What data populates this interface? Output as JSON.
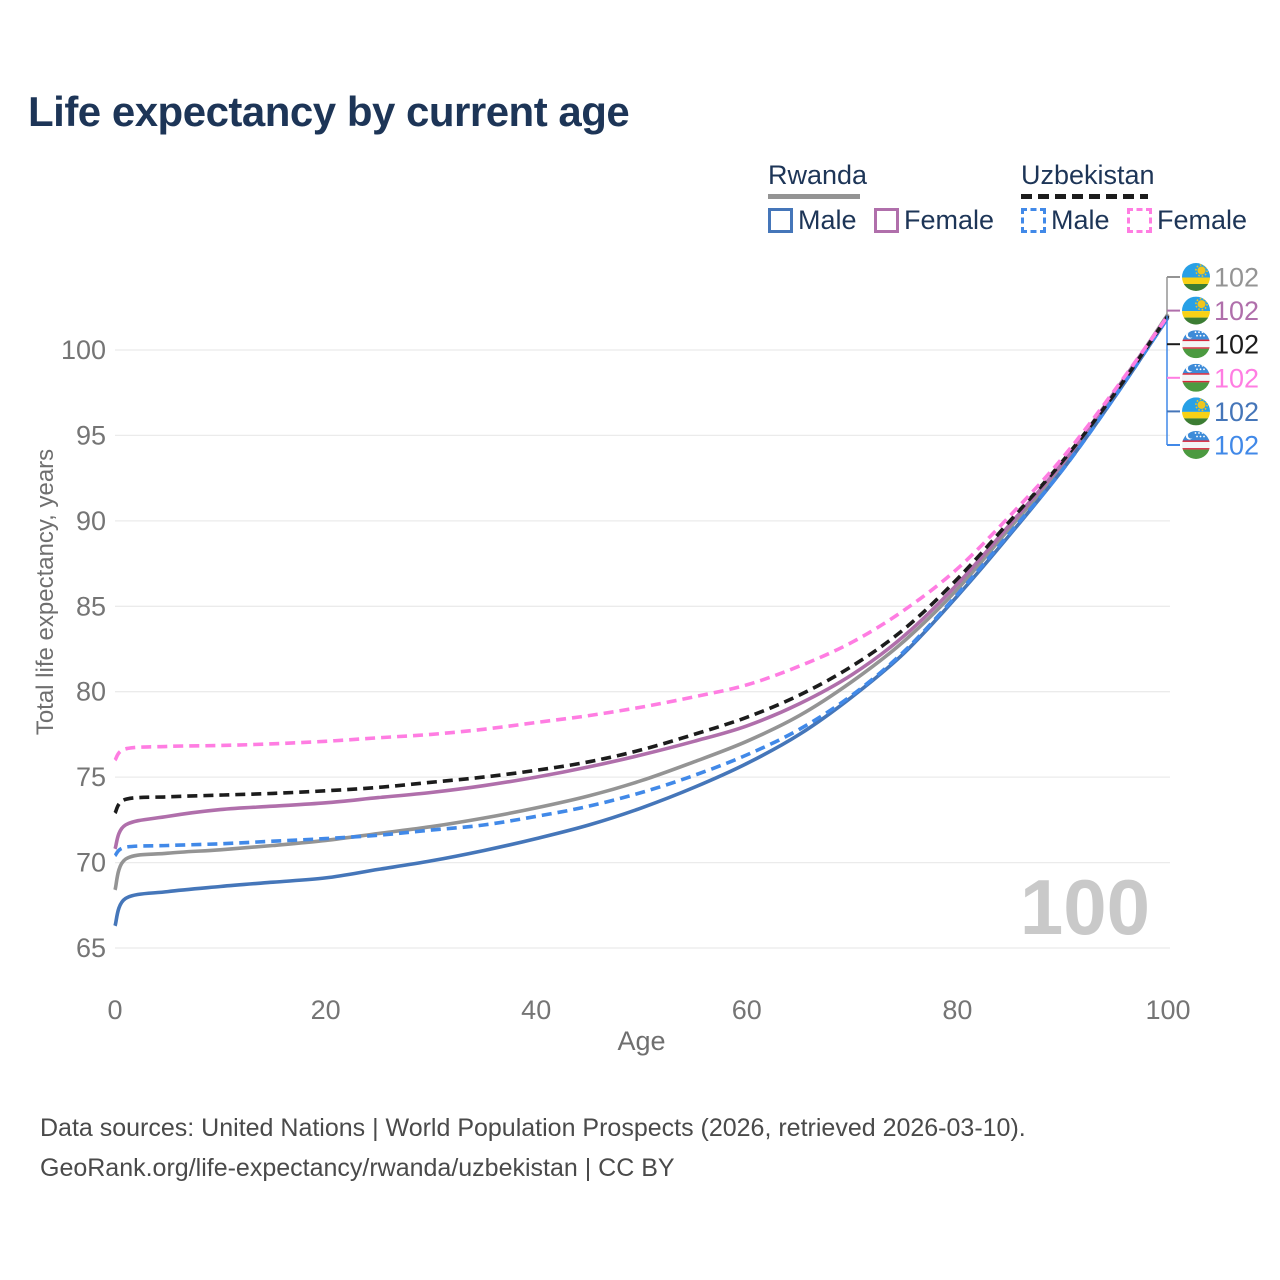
{
  "title": "Life expectancy by current age",
  "watermark": "100",
  "legend": {
    "groups": [
      {
        "country": "Rwanda",
        "line_style": "solid",
        "line_color": "#949494",
        "items": [
          {
            "label": "Male",
            "color": "#4576b9",
            "dashed": false
          },
          {
            "label": "Female",
            "color": "#b06fab",
            "dashed": false
          }
        ]
      },
      {
        "country": "Uzbekistan",
        "line_style": "dashed",
        "line_color": "#1c1c1c",
        "items": [
          {
            "label": "Male",
            "color": "#4189e8",
            "dashed": true
          },
          {
            "label": "Female",
            "color": "#ff7de2",
            "dashed": true
          }
        ]
      }
    ]
  },
  "chart_data": {
    "type": "line",
    "title": "Life expectancy by current age",
    "xlabel": "Age",
    "ylabel": "Total life expectancy, years",
    "xlim": [
      0,
      100
    ],
    "ylim": [
      65,
      103.5
    ],
    "x_ticks": [
      0,
      20,
      40,
      60,
      80,
      100
    ],
    "y_ticks": [
      65,
      70,
      75,
      80,
      85,
      90,
      95,
      100
    ],
    "grid": "horizontal-only",
    "legend_position": "top-right",
    "x": [
      0,
      1,
      5,
      10,
      15,
      20,
      25,
      30,
      35,
      40,
      45,
      50,
      55,
      60,
      65,
      70,
      75,
      80,
      85,
      90,
      95,
      100
    ],
    "series": [
      {
        "name": "Rwanda",
        "country": "Rwanda",
        "sex": "Both",
        "color": "#949494",
        "dashed": false,
        "values": [
          68.4,
          70.2,
          70.55,
          70.75,
          71.0,
          71.3,
          71.7,
          72.1,
          72.6,
          73.2,
          73.9,
          74.8,
          75.9,
          77.1,
          78.6,
          80.6,
          83.0,
          86.0,
          89.6,
          93.2,
          97.5,
          102.1
        ]
      },
      {
        "name": "Rwanda Female",
        "country": "Rwanda",
        "sex": "Female",
        "color": "#b06fab",
        "dashed": false,
        "values": [
          70.8,
          72.2,
          72.7,
          73.1,
          73.3,
          73.5,
          73.8,
          74.1,
          74.5,
          75.0,
          75.6,
          76.3,
          77.1,
          78.0,
          79.3,
          81.0,
          83.3,
          86.3,
          89.8,
          93.4,
          97.6,
          102.0
        ]
      },
      {
        "name": "Rwanda Male",
        "country": "Rwanda",
        "sex": "Male",
        "color": "#4576b9",
        "dashed": false,
        "values": [
          66.3,
          67.9,
          68.3,
          68.6,
          68.85,
          69.1,
          69.6,
          70.1,
          70.7,
          71.4,
          72.2,
          73.2,
          74.4,
          75.8,
          77.5,
          79.7,
          82.3,
          85.6,
          89.2,
          93.0,
          97.3,
          101.9
        ]
      },
      {
        "name": "Uzbekistan Male",
        "country": "Uzbekistan",
        "sex": "Male",
        "color": "#4189e8",
        "dashed": true,
        "values": [
          70.4,
          70.9,
          71.0,
          71.1,
          71.25,
          71.4,
          71.6,
          71.9,
          72.2,
          72.7,
          73.3,
          74.1,
          75.1,
          76.3,
          77.8,
          79.8,
          82.4,
          85.7,
          89.3,
          93.0,
          97.3,
          101.9
        ]
      },
      {
        "name": "Uzbekistan",
        "country": "Uzbekistan",
        "sex": "Both",
        "color": "#1c1c1c",
        "dashed": true,
        "values": [
          72.9,
          73.7,
          73.85,
          73.95,
          74.05,
          74.2,
          74.4,
          74.7,
          75.0,
          75.4,
          75.9,
          76.6,
          77.5,
          78.5,
          79.8,
          81.5,
          83.7,
          86.6,
          90.0,
          93.5,
          97.5,
          102.0
        ]
      },
      {
        "name": "Uzbekistan Female",
        "country": "Uzbekistan",
        "sex": "Female",
        "color": "#ff7de2",
        "dashed": true,
        "values": [
          76.0,
          76.65,
          76.8,
          76.85,
          76.95,
          77.1,
          77.3,
          77.5,
          77.8,
          78.2,
          78.6,
          79.1,
          79.7,
          80.4,
          81.5,
          82.9,
          84.8,
          87.2,
          90.3,
          93.7,
          97.7,
          102.0
        ]
      }
    ],
    "end_labels": [
      {
        "text": "102",
        "flag": "rwanda",
        "series": "Rwanda",
        "color": "#949494"
      },
      {
        "text": "102",
        "flag": "rwanda",
        "series": "Rwanda Female",
        "color": "#b06fab"
      },
      {
        "text": "102",
        "flag": "uzbekistan",
        "series": "Uzbekistan",
        "color": "#1c1c1c"
      },
      {
        "text": "102",
        "flag": "uzbekistan",
        "series": "Uzbekistan Female",
        "color": "#ff7de2"
      },
      {
        "text": "102",
        "flag": "rwanda",
        "series": "Rwanda Male",
        "color": "#4576b9"
      },
      {
        "text": "102",
        "flag": "uzbekistan",
        "series": "Uzbekistan Male",
        "color": "#4189e8"
      }
    ]
  },
  "footer": {
    "line1": "Data sources: United Nations | World Population Prospects (2026, retrieved 2026-03-10).",
    "line2": "GeoRank.org/life-expectancy/rwanda/uzbekistan | CC BY"
  }
}
